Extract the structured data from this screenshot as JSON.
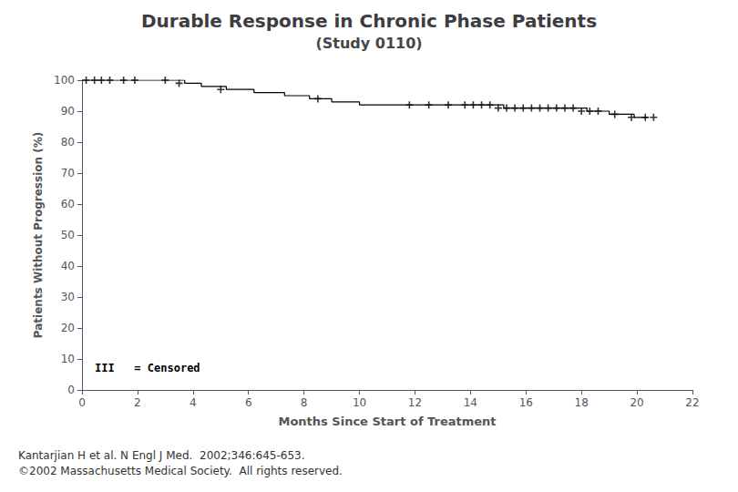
{
  "chart_data": {
    "type": "line",
    "title": "Durable Response in Chronic Phase Patients",
    "subtitle": "(Study 0110)",
    "xlabel": "Months Since Start of Treatment",
    "ylabel": "Patients Without Progression (%)",
    "annotations": [
      "III   = Censored"
    ],
    "footnotes": [
      "Kantarjian H et al. N Engl J Med.  2002;346:645-653.",
      "©2002 Massachusetts Medical Society.  All rights reserved."
    ],
    "xlim": [
      0,
      22
    ],
    "ylim": [
      0,
      100
    ],
    "xticks": [
      0,
      2,
      4,
      6,
      8,
      10,
      12,
      14,
      16,
      18,
      20,
      22
    ],
    "yticks": [
      0,
      10,
      20,
      30,
      40,
      50,
      60,
      70,
      80,
      90,
      100
    ],
    "grid": false,
    "series": [
      {
        "type": "step",
        "color": "#000000",
        "x": [
          0,
          0.3,
          0.6,
          0.9,
          1.2,
          1.5,
          1.8,
          2.2,
          2.8,
          3.2,
          3.7,
          4.0,
          4.3,
          4.8,
          5.2,
          5.7,
          6.2,
          6.8,
          7.3,
          7.8,
          8.2,
          8.6,
          9.0,
          9.5,
          10.0,
          10.5,
          11.0,
          11.5,
          12.0,
          12.3,
          12.8,
          13.2,
          14.0,
          14.3,
          14.6,
          14.9,
          15.2,
          15.5,
          15.8,
          16.1,
          16.4,
          16.7,
          17.0,
          17.3,
          17.6,
          17.9,
          18.2,
          18.5,
          18.8,
          19.0,
          19.3,
          19.6,
          19.9,
          20.1,
          20.4
        ],
        "values": [
          100,
          100,
          100,
          100,
          100,
          100,
          100,
          100,
          100,
          100,
          99,
          99,
          98,
          98,
          97,
          97,
          96,
          96,
          95,
          95,
          94,
          94,
          93,
          93,
          92,
          92,
          92,
          92,
          92,
          92,
          92,
          92,
          92,
          92,
          92,
          92,
          91,
          91,
          91,
          91,
          91,
          91,
          91,
          91,
          91,
          91,
          90,
          90,
          90,
          89,
          89,
          89,
          88,
          88,
          88
        ]
      },
      {
        "type": "scatter",
        "marker": "+",
        "color": "#000000",
        "x": [
          0.15,
          0.45,
          0.7,
          1.0,
          1.5,
          1.9,
          3.0,
          3.5,
          5.0,
          8.5,
          11.8,
          12.5,
          13.2,
          13.8,
          14.1,
          14.4,
          14.7,
          15.0,
          15.3,
          15.6,
          15.9,
          16.2,
          16.5,
          16.8,
          17.1,
          17.4,
          17.7,
          18.0,
          18.3,
          18.6,
          19.2,
          19.8,
          20.3,
          20.6
        ],
        "values": [
          100,
          100,
          100,
          100,
          100,
          100,
          100,
          99,
          97,
          94,
          92,
          92,
          92,
          92,
          92,
          92,
          92,
          91,
          91,
          91,
          91,
          91,
          91,
          91,
          91,
          91,
          91,
          90,
          90,
          90,
          89,
          88,
          88,
          88
        ]
      }
    ]
  }
}
